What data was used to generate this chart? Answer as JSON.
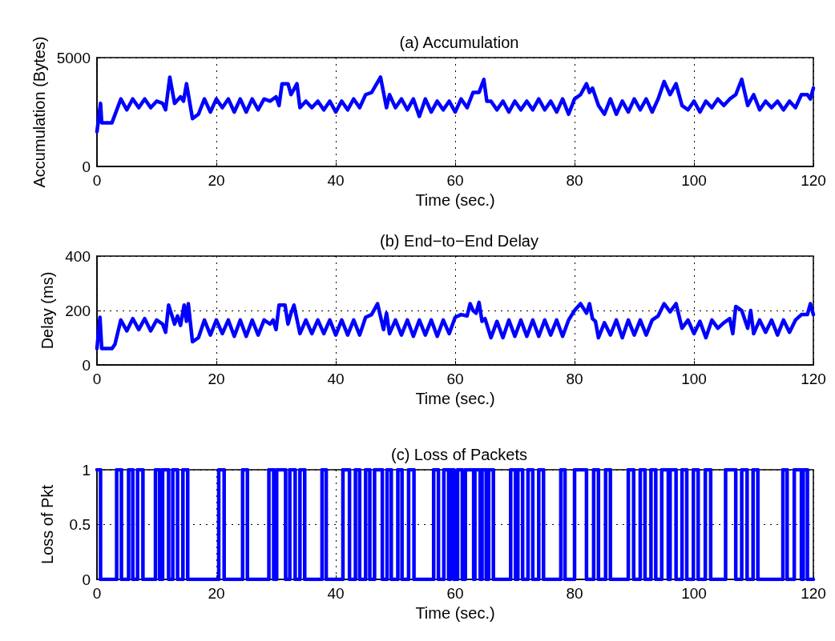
{
  "chart_data": [
    {
      "type": "line",
      "title": "(a) Accumulation",
      "xlabel": "Time (sec.)",
      "ylabel": "Accumulation (Bytes)",
      "xlim": [
        0,
        120
      ],
      "xticks": [
        0,
        20,
        40,
        60,
        80,
        100,
        120
      ],
      "ylim": [
        0,
        5000
      ],
      "yticks": [
        0,
        5000
      ],
      "grid": true,
      "marker": "none",
      "line_style": "solid",
      "series": [
        {
          "color": "#0000ff",
          "x": [
            0,
            0.6,
            0.8,
            2.5,
            4,
            5,
            6,
            7,
            8,
            9,
            10,
            11,
            11.5,
            12.2,
            13,
            14,
            14.5,
            15,
            16,
            17,
            18,
            19,
            20,
            21,
            22,
            23,
            24,
            25,
            26,
            27,
            28,
            29,
            30,
            30.5,
            31,
            32,
            32.5,
            33.5,
            34,
            35,
            36,
            37,
            38,
            39,
            40,
            41,
            42,
            43,
            44,
            45,
            46,
            47.5,
            48.5,
            49,
            50,
            51,
            52,
            53,
            54,
            55,
            56,
            57,
            58,
            59,
            60,
            61,
            62,
            63,
            64,
            64.8,
            65.3,
            66,
            67,
            68,
            69,
            70,
            71,
            72,
            73,
            74,
            75,
            76,
            77,
            78,
            79,
            80,
            81,
            82,
            82.5,
            83,
            84,
            85,
            86,
            87,
            88,
            89,
            90,
            91,
            92,
            93,
            94,
            95,
            96,
            97,
            98,
            99,
            100,
            101,
            102,
            103,
            104,
            105,
            106,
            107,
            108,
            109,
            110,
            111,
            112,
            113,
            114,
            115,
            116,
            117,
            118,
            119,
            119.5,
            120
          ],
          "values": [
            1600,
            2900,
            2000,
            2000,
            3100,
            2600,
            3100,
            2700,
            3100,
            2700,
            3000,
            2900,
            2600,
            4100,
            2900,
            3200,
            3000,
            3800,
            2200,
            2400,
            3100,
            2500,
            3100,
            2700,
            3100,
            2500,
            3100,
            2500,
            3100,
            2600,
            3100,
            3000,
            3200,
            2800,
            3800,
            3800,
            3300,
            3800,
            2700,
            3000,
            2700,
            3000,
            2600,
            3000,
            2500,
            3000,
            2600,
            3100,
            2700,
            3300,
            3400,
            4100,
            2700,
            3300,
            2700,
            3100,
            2600,
            3100,
            2300,
            3100,
            2500,
            3000,
            2600,
            3000,
            2500,
            3100,
            2700,
            3400,
            3400,
            4000,
            3000,
            3000,
            2600,
            3000,
            2500,
            3000,
            2600,
            3000,
            2600,
            3100,
            2600,
            3000,
            2500,
            3100,
            2400,
            3100,
            3300,
            3800,
            3400,
            3600,
            2800,
            2400,
            3100,
            2400,
            3000,
            2500,
            3100,
            2600,
            3100,
            2500,
            3100,
            3900,
            3300,
            3800,
            2800,
            2600,
            3000,
            2500,
            3000,
            2700,
            3100,
            2800,
            3100,
            3300,
            4000,
            2800,
            3300,
            2600,
            3000,
            2700,
            3000,
            2600,
            3000,
            2700,
            3300,
            3300,
            3100,
            3600
          ]
        }
      ]
    },
    {
      "type": "line",
      "title": "(b) End−to−End Delay",
      "xlabel": "Time (sec.)",
      "ylabel": "Delay (ms)",
      "xlim": [
        0,
        120
      ],
      "xticks": [
        0,
        20,
        40,
        60,
        80,
        100,
        120
      ],
      "ylim": [
        0,
        400
      ],
      "yticks": [
        0,
        200,
        400
      ],
      "grid": true,
      "marker": "none",
      "line_style": "solid",
      "series": [
        {
          "color": "#0000ff",
          "x": [
            0,
            0.5,
            0.8,
            2.5,
            3,
            4,
            5,
            6,
            7,
            8,
            9,
            10,
            11,
            11.5,
            12,
            13,
            13.5,
            14,
            14.6,
            15,
            15.3,
            16,
            17,
            18,
            19,
            20,
            21,
            22,
            23,
            24,
            25,
            26,
            27,
            28,
            29,
            29.5,
            30,
            30.5,
            31.5,
            32,
            32.5,
            33,
            34,
            35,
            36,
            37,
            38,
            39,
            40,
            41,
            42,
            43,
            44,
            45,
            46,
            47,
            48,
            48.5,
            49,
            50,
            51,
            52,
            53,
            54,
            55,
            56,
            57,
            58,
            59,
            60,
            61,
            62,
            62.5,
            63,
            63.5,
            64,
            64.5,
            65,
            66,
            67,
            68,
            69,
            70,
            71,
            72,
            73,
            74,
            75,
            76,
            77,
            78,
            79,
            80,
            81,
            82,
            82.5,
            83,
            83.5,
            84,
            85,
            86,
            87,
            88,
            89,
            90,
            91,
            92,
            93,
            94,
            95,
            96,
            97,
            98,
            99,
            100,
            101,
            102,
            103,
            104,
            105,
            106,
            106.5,
            107,
            108,
            109,
            109.5,
            110,
            111,
            112,
            113,
            114,
            115,
            116,
            117,
            118,
            119,
            119.5,
            120
          ],
          "values": [
            60,
            175,
            60,
            60,
            75,
            165,
            125,
            170,
            130,
            170,
            125,
            165,
            150,
            120,
            220,
            150,
            180,
            145,
            220,
            160,
            225,
            85,
            100,
            165,
            110,
            165,
            115,
            165,
            105,
            165,
            105,
            165,
            110,
            165,
            150,
            165,
            130,
            220,
            220,
            150,
            190,
            220,
            115,
            165,
            115,
            165,
            115,
            165,
            110,
            165,
            110,
            165,
            110,
            175,
            185,
            225,
            130,
            190,
            115,
            165,
            110,
            165,
            105,
            165,
            110,
            165,
            105,
            165,
            115,
            175,
            185,
            180,
            225,
            200,
            190,
            230,
            160,
            170,
            100,
            160,
            100,
            165,
            105,
            165,
            105,
            165,
            105,
            165,
            110,
            165,
            105,
            165,
            200,
            225,
            190,
            225,
            170,
            160,
            100,
            155,
            110,
            165,
            100,
            165,
            110,
            165,
            110,
            165,
            180,
            225,
            195,
            225,
            135,
            165,
            115,
            160,
            100,
            165,
            135,
            155,
            170,
            115,
            215,
            200,
            135,
            200,
            115,
            165,
            120,
            165,
            110,
            165,
            120,
            165,
            185,
            185,
            225,
            185
          ]
        }
      ]
    },
    {
      "type": "step",
      "title": "(c) Loss of Packets",
      "xlabel": "Time (sec.)",
      "ylabel": "Loss of Pkt",
      "xlim": [
        0,
        120
      ],
      "xticks": [
        0,
        20,
        40,
        60,
        80,
        100,
        120
      ],
      "ylim": [
        0,
        1
      ],
      "yticks": [
        0,
        0.5,
        1
      ],
      "grid": true,
      "marker": "none",
      "line_style": "solid",
      "series": [
        {
          "color": "#0000ff",
          "x": [
            0,
            0.6,
            3.3,
            4.1,
            5.3,
            6,
            6.8,
            7.7,
            9.8,
            10.5,
            11,
            12,
            12.7,
            13.5,
            14.4,
            15.2,
            20.4,
            21.3,
            24.4,
            25.2,
            28.8,
            29.6,
            30.1,
            31.6,
            32.3,
            33.2,
            34,
            34.8,
            37.7,
            38.4,
            41.2,
            42.3,
            43.3,
            44,
            45,
            45.7,
            46.5,
            47.8,
            48.6,
            49.3,
            50.4,
            51.1,
            52.2,
            53.1,
            56.4,
            57.2,
            58.1,
            58.9,
            59.2,
            59.8,
            60.4,
            61.2,
            61.7,
            63.1,
            63.3,
            64.2,
            64.5,
            65.2,
            65.6,
            66.4,
            69.3,
            70.1,
            70.5,
            71.3,
            72.2,
            73,
            74,
            74.8,
            77.7,
            78.4,
            80,
            82,
            83.2,
            84,
            85.2,
            86,
            89,
            89.9,
            91,
            91.8,
            92.8,
            93.6,
            94.6,
            95.7,
            96,
            97,
            98,
            98.8,
            99.9,
            100.7,
            101.9,
            102.8,
            105.3,
            107,
            108,
            108.9,
            109.9,
            110.7,
            114.9,
            115.6,
            116.8,
            118,
            118.3,
            119,
            120
          ],
          "values": [
            1,
            0,
            1,
            0,
            1,
            0,
            1,
            0,
            1,
            0,
            1,
            0,
            1,
            0,
            1,
            0,
            1,
            0,
            1,
            0,
            1,
            0,
            1,
            0,
            1,
            0,
            1,
            0,
            1,
            0,
            1,
            0,
            1,
            0,
            1,
            0,
            1,
            0,
            1,
            0,
            1,
            0,
            1,
            0,
            1,
            0,
            1,
            0,
            1,
            0,
            1,
            0,
            1,
            0,
            1,
            0,
            1,
            0,
            1,
            0,
            1,
            0,
            1,
            0,
            1,
            0,
            1,
            0,
            1,
            0,
            1,
            0,
            1,
            0,
            1,
            0,
            1,
            0,
            1,
            0,
            1,
            0,
            1,
            0,
            1,
            0,
            1,
            0,
            1,
            0,
            1,
            0,
            1,
            0,
            1,
            0,
            1,
            0,
            1,
            0,
            1,
            0,
            1,
            0,
            0
          ]
        }
      ]
    }
  ]
}
